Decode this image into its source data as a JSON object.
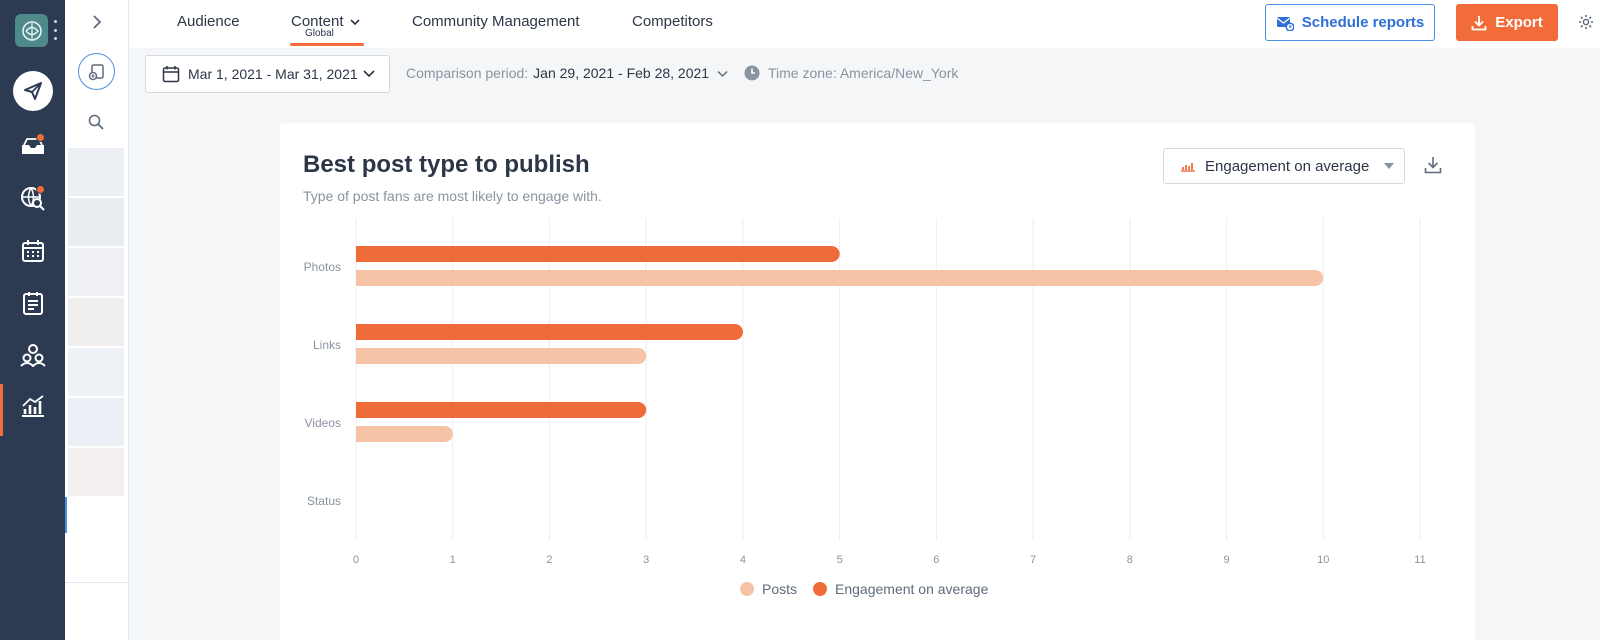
{
  "nav_tabs": [
    {
      "label": "Audience"
    },
    {
      "label": "Content",
      "sublabel": "Global",
      "active": true
    },
    {
      "label": "Community Management"
    },
    {
      "label": "Competitors"
    }
  ],
  "actions": {
    "schedule_label": "Schedule reports",
    "export_label": "Export"
  },
  "filters": {
    "date_range": "Mar 1, 2021 - Mar 31, 2021",
    "comparison_label": "Comparison period:",
    "comparison_value": "Jan 29, 2021 - Feb 28, 2021",
    "timezone": "Time zone: America/New_York"
  },
  "card": {
    "title": "Best post type to publish",
    "subtitle": "Type of post fans are most likely to engage with.",
    "metric_select": "Engagement on average"
  },
  "colors": {
    "accent": "#f26c3a",
    "posts": "#f7c3a6",
    "engagement": "#ef6c3a",
    "rail": "#2c3a52",
    "link": "#2e6fd8"
  },
  "icons": {
    "logo": "brain-logo-icon",
    "publish": "paper-plane-icon",
    "inbox": "inbox-icon",
    "listen": "globe-search-icon",
    "calendar": "calendar-icon",
    "tasks": "clipboard-icon",
    "users": "people-icon",
    "analytics": "bar-chart-icon"
  },
  "chart_data": {
    "type": "bar",
    "orientation": "horizontal",
    "categories": [
      "Photos",
      "Links",
      "Videos",
      "Status"
    ],
    "series": [
      {
        "name": "Engagement on average",
        "values": [
          5,
          4,
          3,
          0
        ]
      },
      {
        "name": "Posts",
        "values": [
          10,
          3,
          1,
          0
        ]
      }
    ],
    "xlim": [
      0,
      11
    ],
    "xticks": [
      0,
      1,
      2,
      3,
      4,
      5,
      6,
      7,
      8,
      9,
      10,
      11
    ],
    "grid": true,
    "legend": "bottom-center",
    "legend_order": [
      "Posts",
      "Engagement on average"
    ]
  }
}
